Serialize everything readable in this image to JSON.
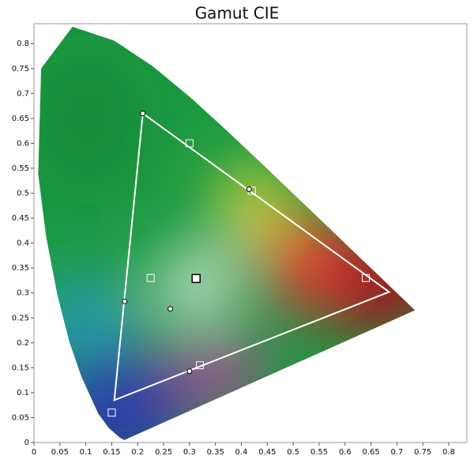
{
  "chart_data": {
    "type": "scatter",
    "title": "Gamut CIE",
    "xlim": [
      0,
      0.835
    ],
    "ylim": [
      0,
      0.84
    ],
    "xticks": [
      0,
      0.05,
      0.1,
      0.15,
      0.2,
      0.25,
      0.3,
      0.35,
      0.4,
      0.45,
      0.5,
      0.55,
      0.6,
      0.65,
      0.7,
      0.75,
      0.8
    ],
    "yticks": [
      0,
      0.05,
      0.1,
      0.15,
      0.2,
      0.25,
      0.3,
      0.35,
      0.4,
      0.45,
      0.5,
      0.55,
      0.6,
      0.65,
      0.7,
      0.75,
      0.8
    ],
    "locus": {
      "x": [
        0.1741,
        0.1644,
        0.144,
        0.1241,
        0.0913,
        0.0687,
        0.0454,
        0.0235,
        0.0082,
        0.0139,
        0.0743,
        0.1547,
        0.2296,
        0.3016,
        0.3731,
        0.4441,
        0.5125,
        0.5752,
        0.627,
        0.6658,
        0.6915,
        0.7347
      ],
      "y": [
        0.005,
        0.0109,
        0.0297,
        0.0578,
        0.1327,
        0.2007,
        0.295,
        0.4127,
        0.5384,
        0.7502,
        0.8338,
        0.8059,
        0.7543,
        0.6923,
        0.6245,
        0.5547,
        0.4866,
        0.4242,
        0.3725,
        0.334,
        0.3083,
        0.2653
      ]
    },
    "series": [
      {
        "marker": "polygon",
        "color": "#ffffff",
        "x": [
          0.21,
          0.685,
          0.155
        ],
        "y": [
          0.66,
          0.302,
          0.085
        ]
      },
      {
        "marker": "square",
        "color": "#ffffff",
        "x": [
          0.3,
          0.64,
          0.15,
          0.225,
          0.42,
          0.32
        ],
        "y": [
          0.6,
          0.33,
          0.06,
          0.33,
          0.505,
          0.155
        ]
      },
      {
        "marker": "square",
        "color": "#000000",
        "x": [
          0.3127
        ],
        "y": [
          0.329
        ]
      },
      {
        "marker": "circle",
        "color": "#000000",
        "x": [
          0.21,
          0.415,
          0.175,
          0.263,
          0.3
        ],
        "y": [
          0.66,
          0.508,
          0.283,
          0.268,
          0.143
        ]
      }
    ]
  }
}
